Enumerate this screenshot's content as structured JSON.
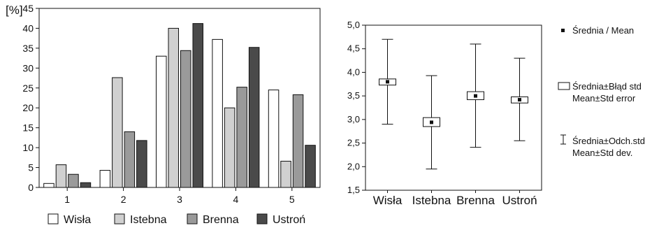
{
  "chart_data": [
    {
      "type": "bar",
      "ylabel": "[%]",
      "ylim": [
        0,
        45
      ],
      "yticks": [
        0,
        5,
        10,
        15,
        20,
        25,
        30,
        35,
        40,
        45
      ],
      "categories": [
        "1",
        "2",
        "3",
        "4",
        "5"
      ],
      "series": [
        {
          "name": "Wisła",
          "color": "#ffffff",
          "values": [
            1.0,
            4.3,
            33.0,
            37.2,
            24.5
          ]
        },
        {
          "name": "Istebna",
          "color": "#d0d0d0",
          "values": [
            5.7,
            27.6,
            40.0,
            20.0,
            6.6
          ]
        },
        {
          "name": "Brenna",
          "color": "#9a9a9a",
          "values": [
            3.3,
            14.0,
            34.4,
            25.2,
            23.3
          ]
        },
        {
          "name": "Ustroń",
          "color": "#4a4a4a",
          "values": [
            1.2,
            11.8,
            41.2,
            35.2,
            10.6
          ]
        }
      ],
      "legend": "bottom"
    },
    {
      "type": "box",
      "ylim": [
        1.5,
        5.0
      ],
      "yticks": [
        "1,5",
        "2,0",
        "2,5",
        "3,0",
        "3,5",
        "4,0",
        "4,5",
        "5,0"
      ],
      "ytick_values": [
        1.5,
        2.0,
        2.5,
        3.0,
        3.5,
        4.0,
        4.5,
        5.0
      ],
      "categories": [
        "Wisła",
        "Istebna",
        "Brenna",
        "Ustroń"
      ],
      "mean": [
        3.8,
        2.94,
        3.5,
        3.42
      ],
      "se_low": [
        3.73,
        2.85,
        3.42,
        3.35
      ],
      "se_high": [
        3.86,
        3.04,
        3.59,
        3.48
      ],
      "sd_low": [
        2.9,
        1.95,
        2.41,
        2.55
      ],
      "sd_high": [
        4.7,
        3.93,
        4.6,
        4.3
      ],
      "legend": "right",
      "legend_items": {
        "mean": "Średnia / Mean",
        "se_line1": "Średnia±Błąd std",
        "se_line2": "Mean±Std error",
        "sd_line1": "Średnia±Odch.std",
        "sd_line2": "Mean±Std dev."
      }
    }
  ]
}
